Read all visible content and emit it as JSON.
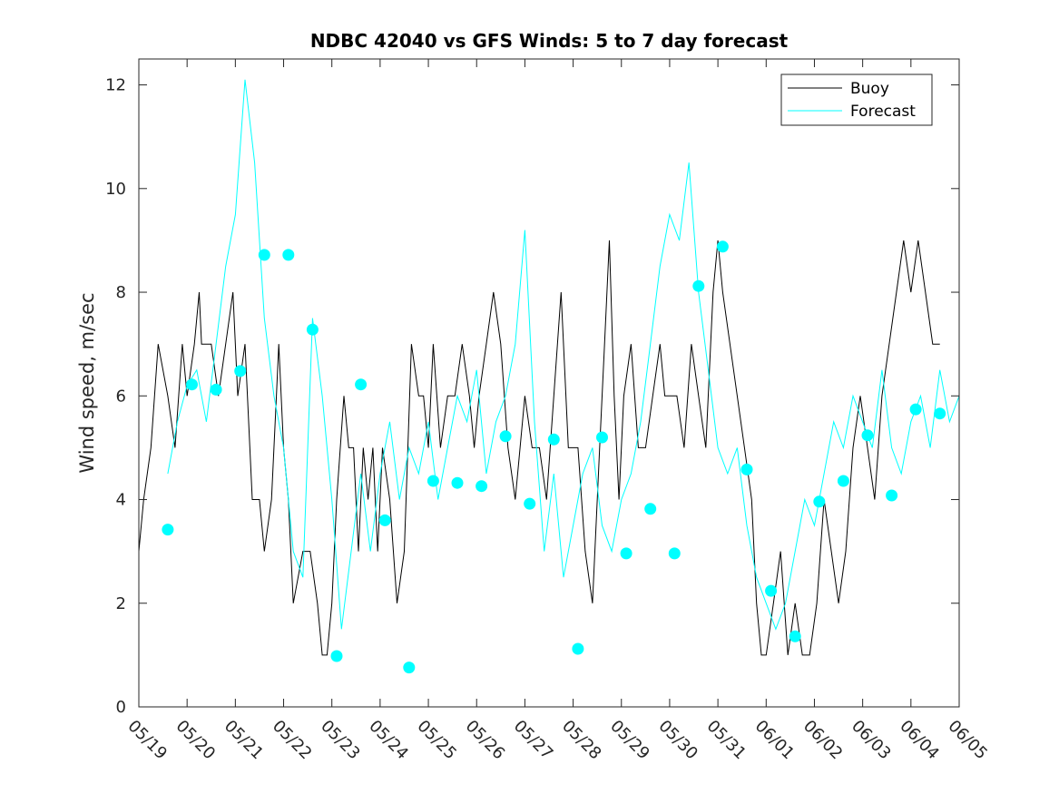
{
  "chart_data": {
    "type": "line",
    "title": "NDBC 42040 vs GFS Winds: 5 to 7 day forecast",
    "xlabel": "",
    "ylabel": "Wind speed, m/sec",
    "xlim": [
      "05/19",
      "06/05"
    ],
    "ylim": [
      0,
      12.5
    ],
    "x_tick_labels": [
      "05/19",
      "05/20",
      "05/21",
      "05/22",
      "05/23",
      "05/24",
      "05/25",
      "05/26",
      "05/27",
      "05/28",
      "05/29",
      "05/30",
      "05/31",
      "06/01",
      "06/02",
      "06/03",
      "06/04",
      "06/05"
    ],
    "y_ticks": [
      0,
      2,
      4,
      6,
      8,
      10,
      12
    ],
    "grid": false,
    "legend_position": "top-right",
    "colors": {
      "buoy": "#000000",
      "forecast": "#00ffff"
    },
    "series": [
      {
        "name": "Buoy",
        "style": "line",
        "x": [
          0,
          0.1,
          0.25,
          0.4,
          0.6,
          0.75,
          0.9,
          1.0,
          1.15,
          1.25,
          1.3,
          1.5,
          1.65,
          1.8,
          1.95,
          2.05,
          2.2,
          2.35,
          2.5,
          2.6,
          2.75,
          2.85,
          2.9,
          3.0,
          3.1,
          3.2,
          3.4,
          3.55,
          3.7,
          3.8,
          3.9,
          4.0,
          4.1,
          4.25,
          4.35,
          4.45,
          4.55,
          4.65,
          4.75,
          4.85,
          4.95,
          5.05,
          5.2,
          5.35,
          5.5,
          5.65,
          5.8,
          5.9,
          6.0,
          6.1,
          6.25,
          6.4,
          6.55,
          6.7,
          6.85,
          6.95,
          7.05,
          7.2,
          7.35,
          7.5,
          7.65,
          7.8,
          7.9,
          8.0,
          8.15,
          8.3,
          8.45,
          8.6,
          8.75,
          8.9,
          9.0,
          9.1,
          9.25,
          9.4,
          9.55,
          9.65,
          9.75,
          9.85,
          9.95,
          10.05,
          10.2,
          10.35,
          10.5,
          10.65,
          10.8,
          10.9,
          11.0,
          11.15,
          11.3,
          11.45,
          11.6,
          11.75,
          11.9,
          12.0,
          12.1,
          12.25,
          12.4,
          12.55,
          12.7,
          12.8,
          12.9,
          13.0,
          13.15,
          13.3,
          13.45,
          13.6,
          13.75,
          13.9,
          14.05,
          14.2,
          14.35,
          14.5,
          14.65,
          14.8,
          14.95,
          15.1,
          15.25,
          15.4,
          15.55,
          15.7,
          15.85,
          16.0,
          16.15,
          16.3,
          16.45,
          16.6
        ],
        "y": [
          3,
          4,
          5,
          7,
          6,
          5,
          7,
          6,
          7,
          8,
          7,
          7,
          6,
          7,
          8,
          6,
          7,
          4,
          4,
          3,
          4,
          6,
          7,
          5,
          4,
          2,
          3,
          3,
          2,
          1,
          1,
          2,
          4,
          6,
          5,
          5,
          3,
          5,
          4,
          5,
          3,
          5,
          4,
          2,
          3,
          7,
          6,
          6,
          5,
          7,
          5,
          6,
          6,
          7,
          6,
          5,
          6,
          7,
          8,
          7,
          5,
          4,
          5,
          6,
          5,
          5,
          4,
          6,
          8,
          5,
          5,
          5,
          3,
          2,
          5,
          7,
          9,
          6,
          4,
          6,
          7,
          5,
          5,
          6,
          7,
          6,
          6,
          6,
          5,
          7,
          6,
          5,
          8,
          9,
          8,
          7,
          6,
          5,
          4,
          2,
          1,
          1,
          2,
          3,
          1,
          2,
          1,
          1,
          2,
          4,
          3,
          2,
          3,
          5,
          6,
          5,
          4,
          6,
          7,
          8,
          9,
          8,
          9,
          8,
          7,
          7
        ]
      },
      {
        "name": "Forecast",
        "style": "line",
        "x": [
          0.6,
          0.8,
          1.0,
          1.2,
          1.4,
          1.6,
          1.8,
          2.0,
          2.2,
          2.4,
          2.6,
          2.8,
          3.0,
          3.2,
          3.4,
          3.6,
          3.8,
          4.0,
          4.2,
          4.4,
          4.6,
          4.8,
          5.0,
          5.2,
          5.4,
          5.6,
          5.8,
          6.0,
          6.2,
          6.4,
          6.6,
          6.8,
          7.0,
          7.2,
          7.4,
          7.6,
          7.8,
          8.0,
          8.2,
          8.4,
          8.6,
          8.8,
          9.0,
          9.2,
          9.4,
          9.6,
          9.8,
          10.0,
          10.2,
          10.4,
          10.6,
          10.8,
          11.0,
          11.2,
          11.4,
          11.6,
          11.8,
          12.0,
          12.2,
          12.4,
          12.6,
          12.8,
          13.0,
          13.2,
          13.4,
          13.6,
          13.8,
          14.0,
          14.2,
          14.4,
          14.6,
          14.8,
          15.0,
          15.2,
          15.4,
          15.6,
          15.8,
          16.0,
          16.2,
          16.4,
          16.6,
          16.8,
          17.0
        ],
        "y": [
          4.5,
          5.5,
          6.2,
          6.5,
          5.5,
          7.0,
          8.5,
          9.5,
          12.1,
          10.5,
          7.5,
          6.0,
          5.0,
          3.0,
          2.5,
          7.5,
          6.0,
          4.0,
          1.5,
          3.0,
          4.5,
          3.0,
          4.5,
          5.5,
          4.0,
          5.0,
          4.5,
          5.5,
          4.0,
          5.0,
          6.0,
          5.5,
          6.5,
          4.5,
          5.5,
          6.0,
          7.0,
          9.2,
          5.5,
          3.0,
          4.5,
          2.5,
          3.5,
          4.5,
          5.0,
          3.5,
          3.0,
          4.0,
          4.5,
          5.5,
          7.0,
          8.5,
          9.5,
          9.0,
          10.5,
          8.0,
          6.5,
          5.0,
          4.5,
          5.0,
          3.5,
          2.5,
          2.0,
          1.5,
          2.0,
          3.0,
          4.0,
          3.5,
          4.5,
          5.5,
          5.0,
          6.0,
          5.5,
          5.0,
          6.5,
          5.0,
          4.5,
          5.5,
          6.0,
          5.0,
          6.5,
          5.5,
          6.0
        ]
      },
      {
        "name": "",
        "style": "markers",
        "x": [
          0.6,
          1.1,
          1.6,
          2.1,
          2.6,
          3.1,
          3.6,
          4.1,
          4.6,
          5.1,
          5.6,
          6.1,
          6.6,
          7.1,
          7.6,
          8.1,
          8.6,
          9.1,
          9.6,
          10.1,
          10.6,
          11.1,
          11.6,
          12.1,
          12.6,
          13.1,
          13.6,
          14.1,
          14.6,
          15.1,
          15.6,
          16.1,
          16.6
        ],
        "y": [
          3.42,
          6.22,
          6.12,
          6.48,
          8.72,
          8.72,
          7.28,
          0.98,
          6.22,
          3.6,
          0.76,
          4.36,
          4.32,
          4.26,
          5.22,
          3.92,
          5.16,
          1.12,
          5.2,
          2.96,
          3.82,
          2.96,
          8.12,
          8.88,
          4.58,
          2.24,
          1.36,
          3.96,
          4.36,
          5.24,
          4.08,
          5.74,
          5.66
        ]
      }
    ]
  }
}
